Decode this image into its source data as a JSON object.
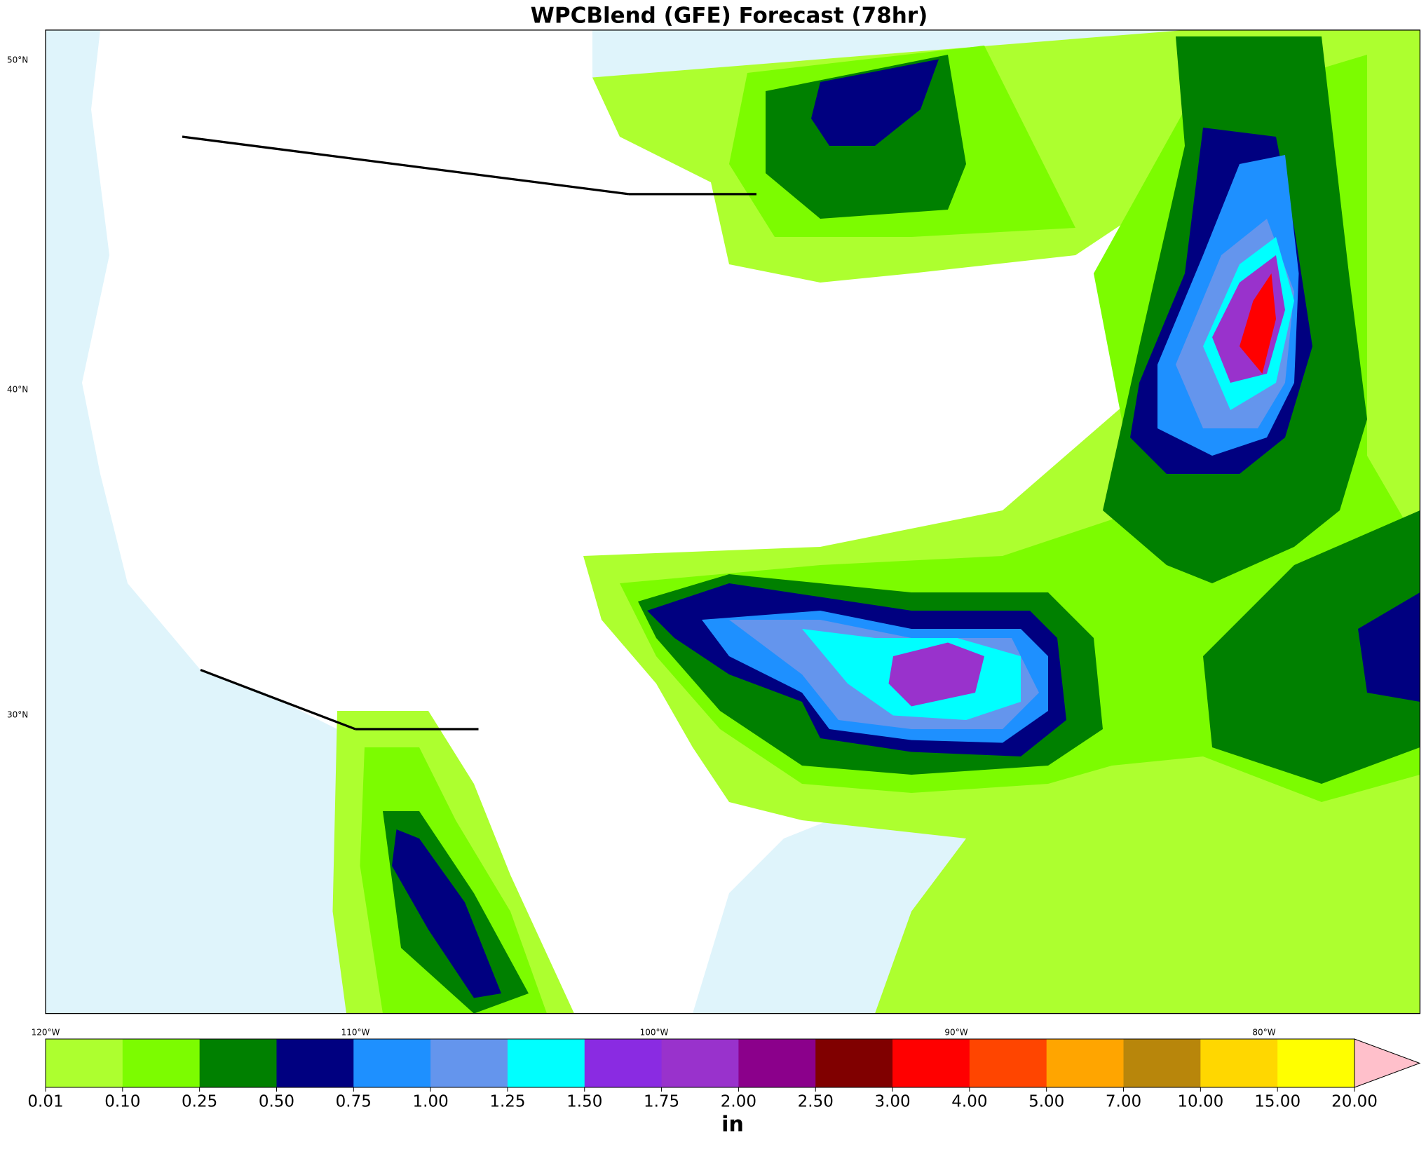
{
  "title": "WPCBlend (GFE) Forecast (78hr)",
  "lat_labels": [
    "50°N",
    "40°N",
    "30°N"
  ],
  "lon_labels": [
    "120°W",
    "110°W",
    "100°W",
    "90°W",
    "80°W"
  ],
  "colorbar": {
    "levels": [
      0.01,
      {
        "value": 0.1,
        "label": "0.10"
      },
      0.25,
      {
        "value": 0.5,
        "label": "0.50"
      },
      0.75,
      {
        "value": 1,
        "label": "1.00"
      },
      1.25,
      {
        "value": 1.5,
        "label": "1.50"
      },
      1.75,
      {
        "value": 2,
        "label": "2.00"
      },
      {
        "value": 2.5,
        "label": "2.50"
      },
      {
        "value": 3,
        "label": "3.00"
      },
      {
        "value": 4,
        "label": "4.00"
      },
      {
        "value": 5,
        "label": "5.00"
      },
      {
        "value": 7,
        "label": "7.00"
      },
      {
        "value": 10,
        "label": "10.00"
      },
      {
        "value": 15,
        "label": "15.00"
      },
      {
        "value": 20,
        "label": "20.00"
      }
    ],
    "colors": [
      "#adff2f",
      "#7cfc00",
      "#008000",
      "#000080",
      "#1e90ff",
      "#6495ed",
      "#00ffff",
      "#8a2be2",
      "#9932cc",
      "#8b008b",
      "#800000",
      "#ff0000",
      "#ff4500",
      "#ffa500",
      "#b8860b",
      "#ffd700",
      "#ffff00"
    ],
    "over_color": "#ffc0cb",
    "unit": "in"
  }
}
